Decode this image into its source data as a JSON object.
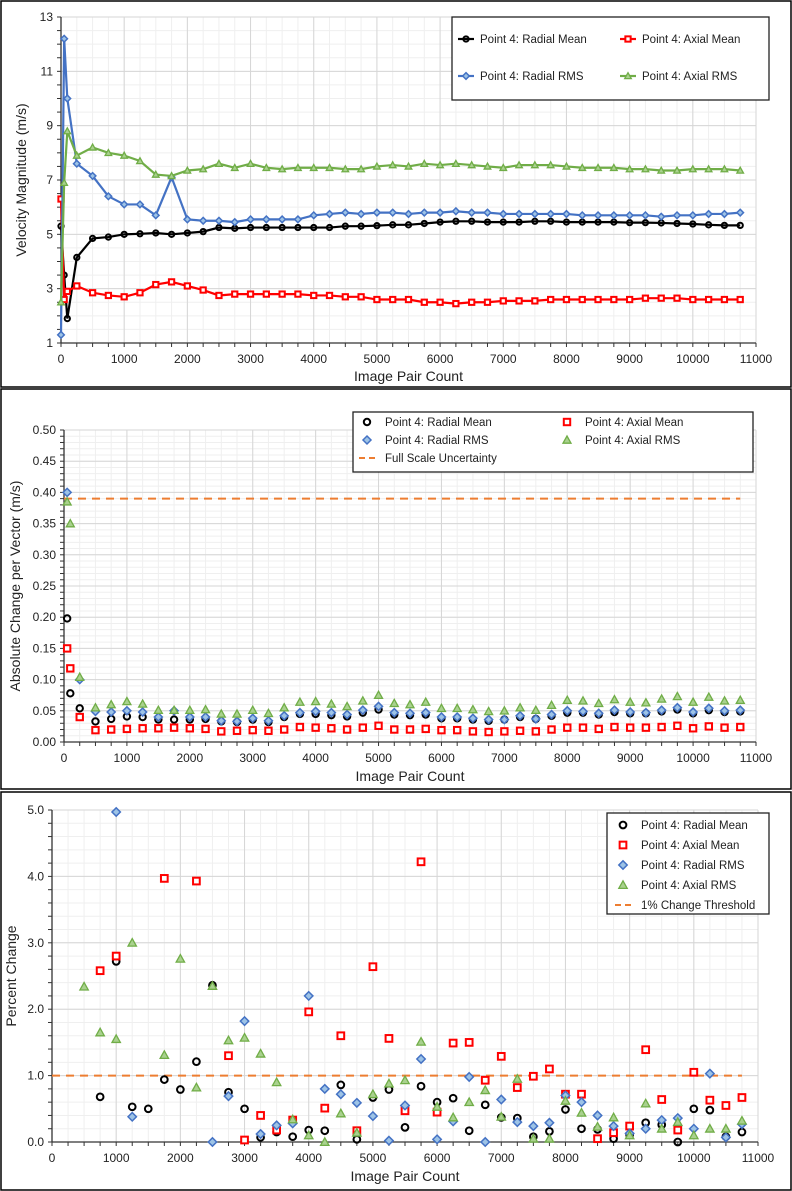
{
  "chart_data": [
    {
      "type": "line",
      "xlabel": "Image Pair Count",
      "ylabel": "Velocity Magnitude (m/s)",
      "xlim": [
        0,
        11000
      ],
      "ylim": [
        1,
        13
      ],
      "xticks": [
        0,
        1000,
        2000,
        3000,
        4000,
        5000,
        6000,
        7000,
        8000,
        9000,
        10000,
        11000
      ],
      "yticks": [
        1,
        3,
        5,
        7,
        9,
        11,
        13
      ],
      "ytick_labels": [
        "1",
        "3",
        "5",
        "7",
        "9",
        "11",
        "13"
      ],
      "grid": true,
      "legend_position": "top-right",
      "colors": {
        "radial_mean": "#000000",
        "axial_mean": "#ff0000",
        "radial_rms": "#4472c4",
        "axial_rms": "#70ad47"
      },
      "x": [
        0,
        50,
        100,
        250,
        500,
        750,
        1000,
        1250,
        1500,
        1750,
        2000,
        2250,
        2500,
        2750,
        3000,
        3250,
        3500,
        3750,
        4000,
        4250,
        4500,
        4750,
        5000,
        5250,
        5500,
        5750,
        6000,
        6250,
        6500,
        6750,
        7000,
        7250,
        7500,
        7750,
        8000,
        8250,
        8500,
        8750,
        9000,
        9250,
        9500,
        9750,
        10000,
        10250,
        10500,
        10750
      ],
      "series": [
        {
          "name": "Point 4: Radial Mean",
          "color": "#000000",
          "marker": "circle",
          "values": [
            5.3,
            3.5,
            1.9,
            4.15,
            4.85,
            4.9,
            5.0,
            5.02,
            5.05,
            5.0,
            5.05,
            5.1,
            5.25,
            5.22,
            5.25,
            5.25,
            5.25,
            5.25,
            5.25,
            5.25,
            5.3,
            5.3,
            5.32,
            5.35,
            5.35,
            5.4,
            5.45,
            5.48,
            5.48,
            5.45,
            5.45,
            5.45,
            5.48,
            5.48,
            5.45,
            5.45,
            5.45,
            5.45,
            5.43,
            5.43,
            5.42,
            5.4,
            5.38,
            5.35,
            5.33,
            5.33
          ]
        },
        {
          "name": "Point 4: Axial Mean",
          "color": "#ff0000",
          "marker": "square",
          "values": [
            6.3,
            2.6,
            2.9,
            3.1,
            2.85,
            2.75,
            2.7,
            2.85,
            3.15,
            3.25,
            3.1,
            2.95,
            2.75,
            2.8,
            2.8,
            2.8,
            2.8,
            2.8,
            2.75,
            2.75,
            2.7,
            2.7,
            2.6,
            2.6,
            2.6,
            2.5,
            2.5,
            2.45,
            2.5,
            2.5,
            2.55,
            2.55,
            2.55,
            2.6,
            2.6,
            2.6,
            2.6,
            2.6,
            2.6,
            2.65,
            2.65,
            2.65,
            2.6,
            2.6,
            2.6,
            2.6
          ]
        },
        {
          "name": "Point 4: Radial RMS",
          "color": "#4472c4",
          "marker": "diamond",
          "values": [
            1.3,
            12.2,
            10.0,
            7.6,
            7.15,
            6.4,
            6.1,
            6.1,
            5.7,
            7.1,
            5.55,
            5.5,
            5.5,
            5.45,
            5.55,
            5.55,
            5.55,
            5.55,
            5.7,
            5.75,
            5.8,
            5.75,
            5.8,
            5.8,
            5.75,
            5.8,
            5.8,
            5.85,
            5.8,
            5.8,
            5.75,
            5.75,
            5.75,
            5.75,
            5.75,
            5.7,
            5.7,
            5.7,
            5.7,
            5.7,
            5.65,
            5.7,
            5.7,
            5.75,
            5.75,
            5.8
          ]
        },
        {
          "name": "Point 4: Axial RMS",
          "color": "#70ad47",
          "marker": "triangle",
          "values": [
            2.5,
            6.9,
            8.8,
            7.9,
            8.2,
            8.0,
            7.9,
            7.7,
            7.2,
            7.15,
            7.35,
            7.4,
            7.6,
            7.45,
            7.6,
            7.45,
            7.4,
            7.45,
            7.45,
            7.45,
            7.4,
            7.4,
            7.5,
            7.55,
            7.5,
            7.6,
            7.55,
            7.6,
            7.55,
            7.5,
            7.45,
            7.55,
            7.55,
            7.55,
            7.5,
            7.45,
            7.45,
            7.45,
            7.4,
            7.4,
            7.35,
            7.35,
            7.4,
            7.4,
            7.4,
            7.35
          ]
        }
      ]
    },
    {
      "type": "scatter",
      "xlabel": "Image Pair Count",
      "ylabel": "Absolute Change per Vector (m/s)",
      "xlim": [
        0,
        11000
      ],
      "ylim": [
        0,
        0.5
      ],
      "xticks": [
        0,
        1000,
        2000,
        3000,
        4000,
        5000,
        6000,
        7000,
        8000,
        9000,
        10000,
        11000
      ],
      "yticks": [
        0,
        0.05,
        0.1,
        0.15,
        0.2,
        0.25,
        0.3,
        0.35,
        0.4,
        0.45,
        0.5
      ],
      "ytick_labels": [
        "0.00",
        "0.05",
        "0.10",
        "0.15",
        "0.20",
        "0.25",
        "0.30",
        "0.35",
        "0.40",
        "0.45",
        "0.50"
      ],
      "grid": true,
      "legend_position": "top-right",
      "x": [
        50,
        100,
        250,
        500,
        750,
        1000,
        1250,
        1500,
        1750,
        2000,
        2250,
        2500,
        2750,
        3000,
        3250,
        3500,
        3750,
        4000,
        4250,
        4500,
        4750,
        5000,
        5250,
        5500,
        5750,
        6000,
        6250,
        6500,
        6750,
        7000,
        7250,
        7500,
        7750,
        8000,
        8250,
        8500,
        8750,
        9000,
        9250,
        9500,
        9750,
        10000,
        10250,
        10500,
        10750
      ],
      "series": [
        {
          "name": "Point 4: Radial Mean",
          "color": "#000000",
          "marker": "circle",
          "values": [
            0.198,
            0.078,
            0.054,
            0.033,
            0.037,
            0.041,
            0.04,
            0.036,
            0.036,
            0.036,
            0.037,
            0.033,
            0.032,
            0.036,
            0.032,
            0.04,
            0.045,
            0.045,
            0.043,
            0.041,
            0.047,
            0.052,
            0.044,
            0.043,
            0.044,
            0.038,
            0.038,
            0.036,
            0.034,
            0.036,
            0.04,
            0.037,
            0.042,
            0.047,
            0.047,
            0.044,
            0.048,
            0.046,
            0.046,
            0.049,
            0.052,
            0.046,
            0.051,
            0.048,
            0.049
          ]
        },
        {
          "name": "Point 4: Axial Mean",
          "color": "#ff0000",
          "marker": "square",
          "values": [
            0.15,
            0.118,
            0.04,
            0.019,
            0.02,
            0.021,
            0.022,
            0.022,
            0.023,
            0.022,
            0.021,
            0.017,
            0.018,
            0.019,
            0.018,
            0.02,
            0.024,
            0.023,
            0.022,
            0.02,
            0.023,
            0.026,
            0.02,
            0.02,
            0.021,
            0.019,
            0.019,
            0.017,
            0.016,
            0.017,
            0.018,
            0.017,
            0.02,
            0.023,
            0.023,
            0.021,
            0.024,
            0.023,
            0.023,
            0.024,
            0.026,
            0.022,
            0.025,
            0.023,
            0.024
          ]
        },
        {
          "name": "Point 4: Radial RMS",
          "color": "#4472c4",
          "marker": "diamond",
          "values": [
            0.4,
            null,
            0.1,
            0.049,
            0.048,
            0.05,
            0.048,
            0.04,
            0.05,
            0.04,
            0.04,
            0.034,
            0.033,
            0.038,
            0.034,
            0.042,
            0.047,
            0.049,
            0.047,
            0.044,
            0.051,
            0.057,
            0.047,
            0.046,
            0.047,
            0.04,
            0.04,
            0.038,
            0.036,
            0.036,
            0.042,
            0.037,
            0.044,
            0.05,
            0.049,
            0.046,
            0.051,
            0.048,
            0.047,
            0.051,
            0.055,
            0.048,
            0.054,
            0.05,
            0.051
          ]
        },
        {
          "name": "Point 4: Axial RMS",
          "color": "#70ad47",
          "marker": "triangle",
          "values": [
            0.385,
            0.35,
            0.104,
            0.055,
            0.06,
            0.065,
            0.061,
            0.051,
            0.051,
            0.051,
            0.052,
            0.045,
            0.045,
            0.051,
            0.046,
            0.055,
            0.064,
            0.065,
            0.061,
            0.057,
            0.066,
            0.075,
            0.062,
            0.06,
            0.064,
            0.054,
            0.054,
            0.052,
            0.049,
            0.05,
            0.055,
            0.051,
            0.059,
            0.067,
            0.066,
            0.062,
            0.068,
            0.064,
            0.063,
            0.069,
            0.073,
            0.064,
            0.072,
            0.066,
            0.067
          ]
        }
      ],
      "reference_line": {
        "name": "Full Scale Uncertainty",
        "color": "#ed7d31",
        "value": 0.39,
        "x_range": [
          0,
          10750
        ]
      }
    },
    {
      "type": "scatter",
      "xlabel": "Image Pair Count",
      "ylabel": "Percent Change",
      "xlim": [
        0,
        11000
      ],
      "ylim": [
        0,
        5
      ],
      "xticks": [
        0,
        1000,
        2000,
        3000,
        4000,
        5000,
        6000,
        7000,
        8000,
        9000,
        10000,
        11000
      ],
      "yticks": [
        0,
        1,
        2,
        3,
        4,
        5
      ],
      "ytick_labels": [
        "0.0",
        "1.0",
        "2.0",
        "3.0",
        "4.0",
        "5.0"
      ],
      "grid": true,
      "legend_position": "top-right",
      "x": [
        500,
        750,
        1000,
        1250,
        1500,
        1750,
        2000,
        2250,
        2500,
        2750,
        3000,
        3250,
        3500,
        3750,
        4000,
        4250,
        4500,
        4750,
        5000,
        5250,
        5500,
        5750,
        6000,
        6250,
        6500,
        6750,
        7000,
        7250,
        7500,
        7750,
        8000,
        8250,
        8500,
        8750,
        9000,
        9250,
        9500,
        9750,
        10000,
        10250,
        10500,
        10750
      ],
      "series": [
        {
          "name": "Point 4: Radial Mean",
          "color": "#000000",
          "marker": "circle",
          "values": [
            null,
            0.68,
            2.72,
            0.53,
            0.5,
            0.94,
            0.79,
            1.21,
            2.36,
            0.75,
            0.5,
            0.07,
            0.15,
            0.08,
            0.18,
            0.17,
            0.86,
            0.04,
            0.67,
            0.79,
            0.22,
            0.84,
            0.6,
            0.66,
            0.17,
            0.56,
            0.37,
            0.36,
            0.08,
            0.16,
            0.49,
            0.2,
            0.19,
            0.05,
            0.11,
            0.29,
            0.26,
            0.0,
            0.5,
            0.48,
            0.08,
            0.15
          ]
        },
        {
          "name": "Point 4: Axial Mean",
          "color": "#ff0000",
          "marker": "square",
          "values": [
            null,
            2.58,
            2.8,
            null,
            null,
            3.97,
            null,
            3.93,
            null,
            1.3,
            0.03,
            0.4,
            0.18,
            0.33,
            1.96,
            0.51,
            1.6,
            0.17,
            2.64,
            1.56,
            0.47,
            4.22,
            0.45,
            1.49,
            1.5,
            0.93,
            1.29,
            0.82,
            0.99,
            1.1,
            0.72,
            0.72,
            0.05,
            0.14,
            0.24,
            1.39,
            0.64,
            0.18,
            1.05,
            0.63,
            0.55,
            0.67
          ]
        },
        {
          "name": "Point 4: Radial RMS",
          "color": "#4472c4",
          "marker": "diamond",
          "values": [
            null,
            null,
            4.97,
            0.38,
            null,
            null,
            null,
            null,
            0.0,
            0.69,
            1.82,
            0.12,
            0.25,
            0.28,
            2.2,
            0.8,
            0.72,
            0.59,
            0.39,
            0.02,
            0.55,
            1.25,
            0.04,
            0.31,
            0.98,
            0.0,
            0.64,
            0.3,
            0.24,
            0.29,
            0.7,
            0.6,
            0.4,
            0.24,
            0.13,
            0.2,
            0.33,
            0.36,
            0.2,
            1.03,
            0.07,
            0.27
          ]
        },
        {
          "name": "Point 4: Axial RMS",
          "color": "#70ad47",
          "marker": "triangle",
          "values": [
            2.34,
            1.65,
            1.55,
            3.0,
            null,
            1.31,
            2.76,
            0.82,
            2.35,
            1.53,
            1.57,
            1.33,
            0.9,
            0.34,
            0.1,
            0.0,
            0.43,
            0.14,
            0.72,
            0.88,
            0.93,
            1.51,
            0.53,
            0.37,
            0.6,
            0.78,
            0.38,
            0.95,
            0.05,
            0.05,
            0.62,
            0.44,
            0.23,
            0.37,
            0.1,
            0.58,
            0.2,
            0.3,
            0.1,
            0.2,
            0.2,
            0.32
          ]
        }
      ],
      "reference_line": {
        "name": "1% Change Threshold",
        "color": "#ed7d31",
        "value": 1.0,
        "x_range": [
          0,
          10750
        ]
      }
    }
  ]
}
